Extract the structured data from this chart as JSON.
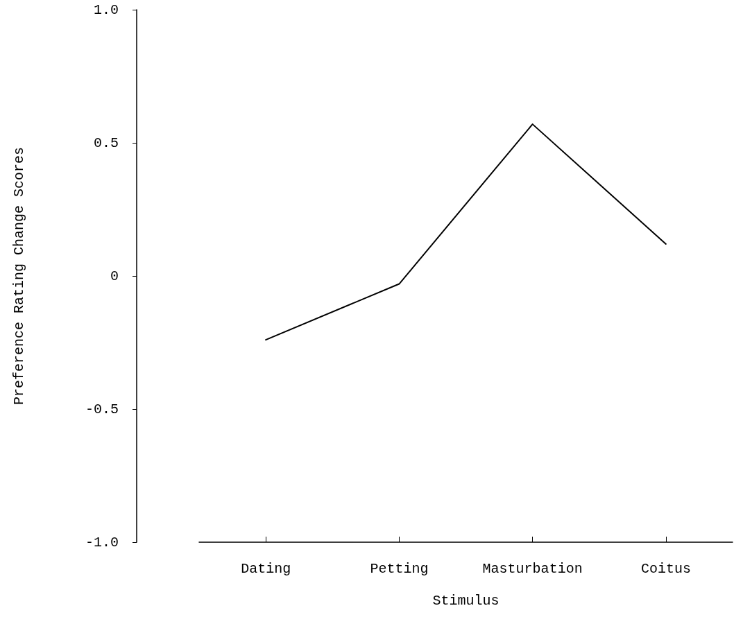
{
  "chart_data": {
    "type": "line",
    "xlabel": "Stimulus",
    "ylabel": "Preference Rating Change Scores",
    "categories": [
      "Dating",
      "Petting",
      "Masturbation",
      "Coitus"
    ],
    "values": [
      -0.24,
      -0.03,
      0.57,
      0.12
    ],
    "color": "#000000",
    "ylim": [
      -1.0,
      1.0
    ],
    "yticks": [
      {
        "value": -1.0,
        "label": "-1.0"
      },
      {
        "value": -0.5,
        "label": "-0.5"
      },
      {
        "value": 0,
        "label": "0"
      },
      {
        "value": 0.5,
        "label": "0.5"
      },
      {
        "value": 1.0,
        "label": "1.0"
      }
    ],
    "grid": false,
    "marker": "none",
    "line_style": "solid"
  }
}
